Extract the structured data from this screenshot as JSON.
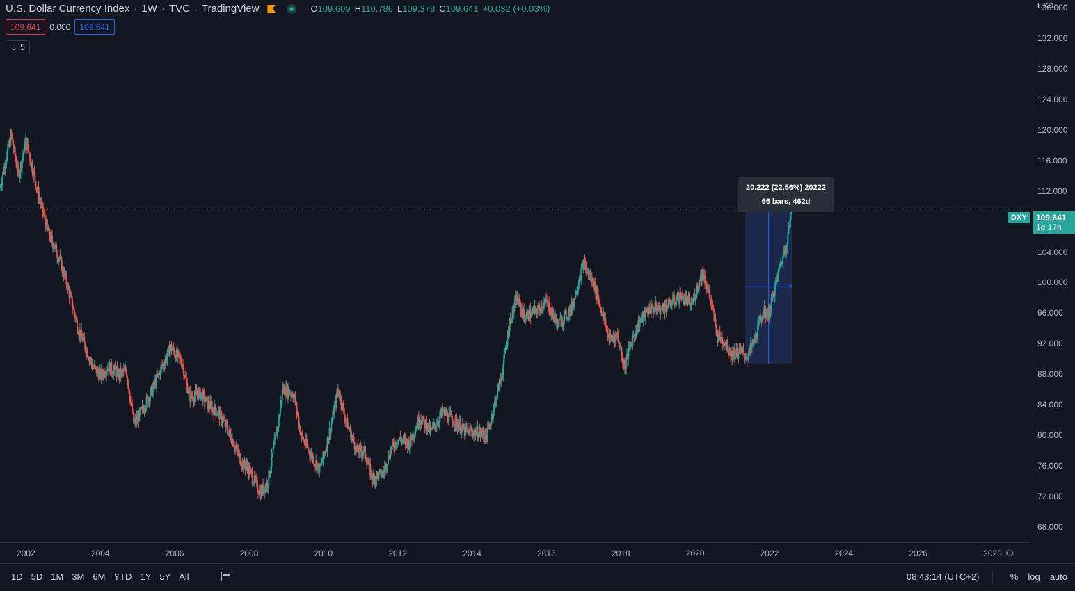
{
  "header": {
    "symbol_name": "U.S. Dollar Currency Index",
    "interval": "1W",
    "exchange": "TVC",
    "brand": "TradingView",
    "ohlc": {
      "o_label": "O",
      "o_value": "109.609",
      "h_label": "H",
      "h_value": "110.786",
      "l_label": "L",
      "l_value": "109.378",
      "c_label": "C",
      "c_value": "109.641",
      "change": "+0.032 (+0.03%)"
    }
  },
  "indicator": {
    "value_red": "109.641",
    "value_plain": "0.000",
    "value_blue": "109.641",
    "collapse_count": "5"
  },
  "price_axis": {
    "currency": "USD",
    "labels": [
      "136.000",
      "132.000",
      "128.000",
      "124.000",
      "120.000",
      "116.000",
      "112.000",
      "104.000",
      "100.000",
      "96.000",
      "92.000",
      "88.000",
      "84.000",
      "80.000",
      "76.000",
      "72.000",
      "68.000"
    ],
    "current_price": "109.641",
    "countdown": "1d 17h",
    "symbol_tag": "DXY"
  },
  "time_axis": {
    "labels": [
      "2002",
      "2004",
      "2006",
      "2008",
      "2010",
      "2012",
      "2014",
      "2016",
      "2018",
      "2020",
      "2022",
      "2024",
      "2026",
      "2028"
    ]
  },
  "measure_tooltip": {
    "line1": "20.222 (22.56%) 20222",
    "line2": "66 bars, 462d"
  },
  "bottom_bar": {
    "periods": [
      "1D",
      "5D",
      "1M",
      "3M",
      "6M",
      "YTD",
      "1Y",
      "5Y",
      "All"
    ],
    "clock": "08:43:14 (UTC+2)",
    "percent": "%",
    "log": "log",
    "auto": "auto"
  },
  "colors": {
    "background": "#131722",
    "up": "#26a69a",
    "down": "#ef5350",
    "measure_fill": "#1e2a4f",
    "measure_line": "#2962ff"
  },
  "chart_data": {
    "type": "candlestick",
    "title": "U.S. Dollar Currency Index",
    "xlabel": "",
    "ylabel": "",
    "ylim": [
      66,
      137
    ],
    "x_range": [
      2001.3,
      2029.0
    ],
    "current_price": 109.641,
    "measure_range": {
      "from": [
        2021.35,
        89.4
      ],
      "to": [
        2022.6,
        109.62
      ]
    },
    "series": [
      {
        "x": [
          2001.3,
          2001.6,
          2001.8,
          2002.0,
          2002.3,
          2002.6,
          2002.9,
          2003.2,
          2003.4,
          2003.8,
          2004.0,
          2004.2,
          2004.5,
          2004.7,
          2004.9,
          2005.1,
          2005.4,
          2005.7,
          2005.9,
          2006.2,
          2006.4,
          2006.7,
          2006.9,
          2007.2,
          2007.5,
          2007.8,
          2008.0,
          2008.3,
          2008.5,
          2008.8,
          2008.9,
          2009.2,
          2009.4,
          2009.6,
          2009.9,
          2010.1,
          2010.4,
          2010.6,
          2010.9,
          2011.1,
          2011.3,
          2011.6,
          2011.8,
          2012.0,
          2012.3,
          2012.6,
          2012.9,
          2013.2,
          2013.5,
          2013.8,
          2014.1,
          2014.4,
          2014.6,
          2014.8,
          2015.0,
          2015.2,
          2015.4,
          2015.7,
          2016.0,
          2016.3,
          2016.5,
          2016.7,
          2016.9,
          2017.0,
          2017.3,
          2017.5,
          2017.7,
          2017.9,
          2018.1,
          2018.3,
          2018.5,
          2018.8,
          2019.1,
          2019.4,
          2019.6,
          2019.9,
          2020.0,
          2020.2,
          2020.4,
          2020.6,
          2020.8,
          2021.0,
          2021.2,
          2021.4,
          2021.6,
          2021.8,
          2022.0,
          2022.1,
          2022.3,
          2022.45,
          2022.6
        ],
        "y": [
          112.5,
          119.4,
          114.0,
          118.7,
          112.2,
          106.5,
          103.2,
          98.0,
          94.0,
          89.0,
          87.8,
          89.0,
          88.0,
          88.5,
          81.5,
          83.0,
          86.0,
          89.5,
          91.5,
          89.5,
          85.0,
          85.5,
          84.0,
          82.8,
          80.0,
          76.5,
          75.5,
          72.5,
          73.8,
          82.0,
          86.0,
          85.5,
          80.0,
          78.0,
          75.5,
          79.0,
          86.0,
          82.0,
          78.0,
          78.0,
          74.5,
          75.0,
          78.0,
          79.5,
          79.0,
          82.3,
          80.5,
          83.0,
          82.0,
          80.5,
          80.5,
          80.0,
          84.0,
          88.0,
          94.5,
          98.0,
          95.5,
          96.2,
          97.5,
          94.5,
          95.5,
          97.0,
          101.0,
          102.5,
          99.5,
          96.0,
          92.5,
          93.2,
          89.0,
          92.5,
          95.0,
          96.7,
          96.5,
          97.5,
          98.3,
          97.0,
          98.5,
          101.5,
          98.0,
          93.0,
          92.3,
          90.5,
          91.0,
          90.3,
          92.5,
          96.0,
          96.0,
          98.5,
          102.5,
          105.0,
          109.6
        ]
      }
    ]
  }
}
